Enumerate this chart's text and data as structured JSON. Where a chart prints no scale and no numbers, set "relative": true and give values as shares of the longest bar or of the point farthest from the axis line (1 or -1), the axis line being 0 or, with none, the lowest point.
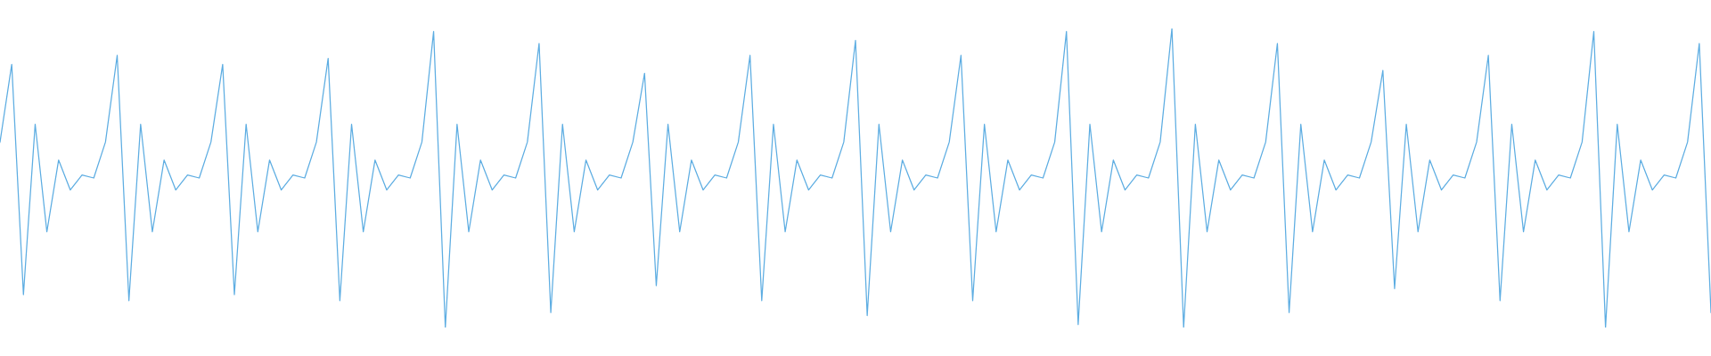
{
  "chart_data": {
    "type": "line",
    "relative": true,
    "grid": false,
    "legend": false,
    "tick_labels": false,
    "marker": "none",
    "line_style": "solid",
    "categories": [
      null,
      null,
      null,
      null,
      null,
      null,
      null,
      null,
      null,
      null,
      null,
      null,
      null,
      null,
      null,
      null,
      null,
      null,
      null,
      null,
      null,
      null,
      null,
      null,
      null,
      null,
      null,
      null,
      null,
      null,
      null,
      null,
      null,
      null,
      null,
      null,
      null,
      null,
      null,
      null,
      null,
      null,
      null,
      null,
      null,
      null,
      null,
      null,
      null,
      null,
      null,
      null,
      null,
      null,
      null,
      null,
      null,
      null,
      null,
      null,
      null,
      null,
      null,
      null,
      null,
      null,
      null,
      null,
      null,
      null,
      null,
      null,
      null,
      null,
      null,
      null,
      null,
      null,
      null,
      null,
      null,
      null,
      null,
      null,
      null,
      null,
      null,
      null,
      null,
      null,
      null,
      null,
      null,
      null,
      null,
      null,
      null,
      null,
      null,
      null,
      null,
      null,
      null,
      null,
      null,
      null,
      null,
      null,
      null,
      null,
      null,
      null,
      null,
      null,
      null,
      null,
      null,
      null,
      null,
      null,
      null,
      null,
      null,
      null,
      null,
      null,
      null,
      null,
      null,
      null,
      null,
      null,
      null,
      null,
      null,
      null,
      null,
      null,
      null,
      null,
      null,
      null,
      null,
      null,
      null,
      null,
      null
    ],
    "series": [
      {
        "color": "#5dade2",
        "values": [
          0.62,
          0.88,
          0.11,
          0.68,
          0.32,
          0.56,
          0.46,
          0.51,
          0.5,
          0.62,
          0.91,
          0.09,
          0.68,
          0.32,
          0.56,
          0.46,
          0.51,
          0.5,
          0.62,
          0.88,
          0.11,
          0.68,
          0.32,
          0.56,
          0.46,
          0.51,
          0.5,
          0.62,
          0.9,
          0.09,
          0.68,
          0.32,
          0.56,
          0.46,
          0.51,
          0.5,
          0.62,
          0.99,
          0.0,
          0.68,
          0.32,
          0.56,
          0.46,
          0.51,
          0.5,
          0.62,
          0.95,
          0.05,
          0.68,
          0.32,
          0.56,
          0.46,
          0.51,
          0.5,
          0.62,
          0.85,
          0.14,
          0.68,
          0.32,
          0.56,
          0.46,
          0.51,
          0.5,
          0.62,
          0.91,
          0.09,
          0.68,
          0.32,
          0.56,
          0.46,
          0.51,
          0.5,
          0.62,
          0.96,
          0.04,
          0.68,
          0.32,
          0.56,
          0.46,
          0.51,
          0.5,
          0.62,
          0.91,
          0.09,
          0.68,
          0.32,
          0.56,
          0.46,
          0.51,
          0.5,
          0.62,
          0.99,
          0.01,
          0.68,
          0.32,
          0.56,
          0.46,
          0.51,
          0.5,
          0.62,
          1.0,
          0.0,
          0.68,
          0.32,
          0.56,
          0.46,
          0.51,
          0.5,
          0.62,
          0.95,
          0.05,
          0.68,
          0.32,
          0.56,
          0.46,
          0.51,
          0.5,
          0.62,
          0.86,
          0.13,
          0.68,
          0.32,
          0.56,
          0.46,
          0.51,
          0.5,
          0.62,
          0.91,
          0.09,
          0.68,
          0.32,
          0.56,
          0.46,
          0.51,
          0.5,
          0.62,
          0.99,
          0.0,
          0.68,
          0.32,
          0.56,
          0.46,
          0.51,
          0.5,
          0.62,
          0.95,
          0.05
        ]
      }
    ]
  }
}
